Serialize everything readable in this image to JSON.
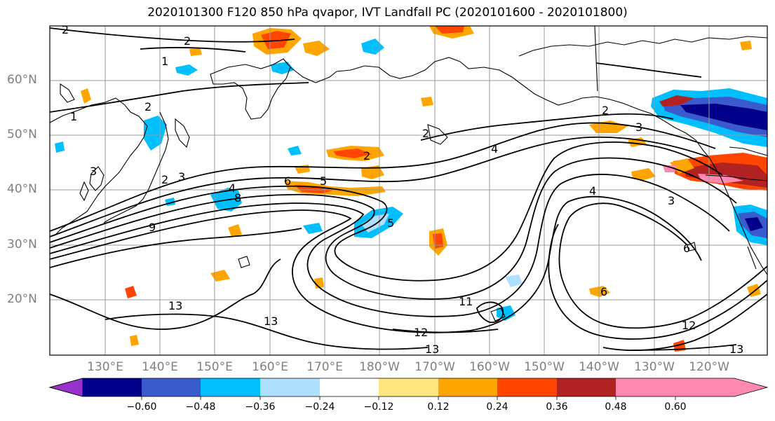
{
  "title": "2020101300 F120 850 hPa qvapor, IVT Landfall PC (2020101600 - 2020101800)",
  "lat_labels": [
    "60°N",
    "50°N",
    "40°N",
    "30°N",
    "20°N"
  ],
  "lon_labels": [
    "130°E",
    "140°E",
    "150°E",
    "160°E",
    "170°E",
    "180°W",
    "170°W",
    "160°W",
    "150°W",
    "140°W",
    "130°W",
    "120°W"
  ],
  "colorbar": {
    "colors": [
      "#9932CC",
      "#00008B",
      "#3A5BCC",
      "#00BFFF",
      "#B0E0FF",
      "#FFFFFF",
      "#FFE680",
      "#FFA500",
      "#FF4500",
      "#B22222",
      "#FF88B0"
    ],
    "tick_labels": [
      "−0.60",
      "−0.48",
      "−0.36",
      "−0.24",
      "−0.12",
      "0.12",
      "0.24",
      "0.36",
      "0.48",
      "0.60"
    ],
    "extend": "both"
  },
  "contour_labels": [
    "2",
    "2",
    "1",
    "1",
    "2",
    "3",
    "2",
    "3",
    "4",
    "5",
    "6",
    "8",
    "9",
    "2",
    "2",
    "2",
    "4",
    "3",
    "4",
    "5",
    "3",
    "6",
    "6",
    "11",
    "13",
    "13",
    "12",
    "12",
    "13",
    "13"
  ]
}
